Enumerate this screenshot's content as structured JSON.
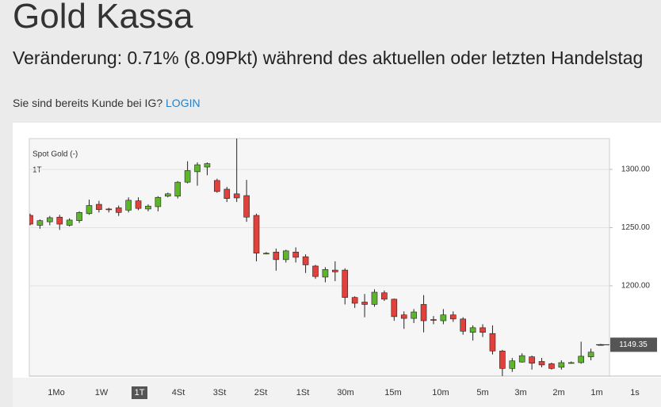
{
  "header": {
    "title": "Gold Kassa",
    "subtitle": "Veränderung: 0.71% (8.09Pkt) während des aktuellen oder letzten Handelstag",
    "login_prompt": "Sie sind bereits Kunde bei IG?",
    "login_link": "LOGIN"
  },
  "chart_data": {
    "type": "candlestick",
    "title": "Spot Gold (-)",
    "subtitle": "1T",
    "open": [
      1260.5,
      1252,
      1255,
      1259,
      1252,
      1256,
      1262,
      1270,
      1266,
      1267,
      1265,
      1273,
      1266,
      1268,
      1277,
      1277,
      1289,
      1298,
      1302,
      1290.5,
      1283,
      1279,
      1277.5,
      1260.5,
      1228,
      1229,
      1222.5,
      1229,
      1225,
      1217,
      1207.5,
      1213.5,
      1213.5,
      1190,
      1186,
      1184,
      1194,
      1188.5,
      1175,
      1172,
      1184,
      1171,
      1170,
      1175,
      1171.5,
      1160,
      1164,
      1159,
      1144,
      1129,
      1134.5,
      1139,
      1135,
      1133,
      1130,
      1134,
      1134,
      1139,
      1149.5
    ],
    "high": [
      1262,
      1257,
      1260,
      1261,
      1258,
      1264,
      1274,
      1273,
      1267,
      1269,
      1276,
      1276,
      1270,
      1277,
      1280,
      1290,
      1307,
      1306,
      1306,
      1292,
      1285,
      1327,
      1291,
      1262,
      1229,
      1232,
      1231,
      1233,
      1227,
      1218,
      1216,
      1221,
      1215,
      1191,
      1193,
      1197,
      1196,
      1189,
      1178,
      1180,
      1192,
      1174,
      1180,
      1178,
      1173,
      1166,
      1167,
      1166,
      1145,
      1138,
      1142,
      1140,
      1138,
      1134,
      1136,
      1135,
      1152,
      1146,
      1150
    ],
    "low": [
      1252,
      1249,
      1252,
      1248,
      1251,
      1254,
      1261,
      1263,
      1263,
      1260,
      1263,
      1265,
      1264,
      1264,
      1276,
      1275,
      1288,
      1286,
      1295,
      1280,
      1272,
      1272,
      1255,
      1221,
      1227,
      1213,
      1220,
      1220,
      1211,
      1206,
      1203,
      1204,
      1184,
      1181,
      1173,
      1182,
      1187,
      1170,
      1163,
      1168,
      1160,
      1167,
      1167,
      1169,
      1158,
      1153,
      1156,
      1141,
      1122.5,
      1126,
      1134,
      1128,
      1130,
      1128,
      1128,
      1133,
      1133,
      1136,
      1149
    ],
    "close": [
      1253,
      1256,
      1258.5,
      1253,
      1256.5,
      1263,
      1269,
      1265.5,
      1265.5,
      1263,
      1273.5,
      1266.5,
      1268.5,
      1276,
      1279,
      1289,
      1299,
      1304,
      1305,
      1281,
      1275,
      1275.5,
      1259,
      1228,
      1228,
      1222.5,
      1230,
      1224.5,
      1218,
      1208,
      1214,
      1212,
      1190,
      1185,
      1184,
      1194.5,
      1188.5,
      1173.5,
      1172,
      1177.5,
      1170,
      1170.5,
      1175,
      1171.5,
      1161,
      1164,
      1160,
      1144,
      1129,
      1135.5,
      1140,
      1133.5,
      1132,
      1129,
      1134,
      1134,
      1139.5,
      1143,
      1149.35
    ],
    "up_color": "#5db52c",
    "down_color": "#e2403b",
    "ylim": [
      1122.4,
      1326.5
    ],
    "yticks": [
      {
        "value": 1200,
        "label": "1200.00"
      },
      {
        "value": 1250,
        "label": "1250.00"
      },
      {
        "value": 1300,
        "label": "1300.00"
      }
    ],
    "grid": true,
    "last_price": 1149.35,
    "time_ranges": [
      "1Mo",
      "1W",
      "1T",
      "4St",
      "3St",
      "2St",
      "1St",
      "30m",
      "15m",
      "10m",
      "5m",
      "3m",
      "2m",
      "1m",
      "1s"
    ],
    "selected_range": 2
  }
}
